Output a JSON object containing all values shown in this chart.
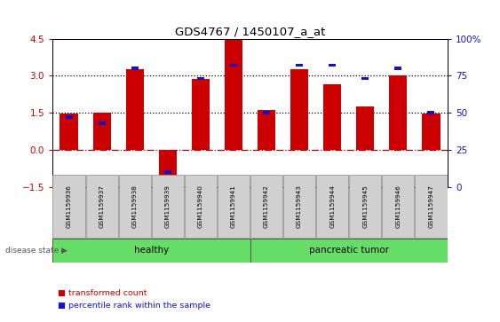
{
  "title": "GDS4767 / 1450107_a_at",
  "samples": [
    "GSM1159936",
    "GSM1159937",
    "GSM1159938",
    "GSM1159939",
    "GSM1159940",
    "GSM1159941",
    "GSM1159942",
    "GSM1159943",
    "GSM1159944",
    "GSM1159945",
    "GSM1159946",
    "GSM1159947"
  ],
  "red_values": [
    1.45,
    1.5,
    3.25,
    -1.4,
    2.88,
    4.45,
    1.62,
    3.28,
    2.65,
    1.75,
    3.0,
    1.45
  ],
  "blue_pct": [
    47,
    43,
    80,
    10,
    73,
    82,
    50,
    82,
    82,
    73,
    80,
    50
  ],
  "ylim_left": [
    -1.5,
    4.5
  ],
  "ylim_right": [
    0,
    100
  ],
  "yticks_left": [
    -1.5,
    0,
    1.5,
    3.0,
    4.5
  ],
  "yticks_right": [
    0,
    25,
    50,
    75,
    100
  ],
  "ytick_labels_right": [
    "0",
    "25",
    "50",
    "75",
    "100%"
  ],
  "red_color": "#cc0000",
  "blue_color": "#1111cc",
  "group1_label": "healthy",
  "group2_label": "pancreatic tumor",
  "group1_range": [
    0,
    6
  ],
  "group2_range": [
    6,
    12
  ],
  "group_color": "#66dd66",
  "sample_bg_color": "#d0d0d0",
  "legend_items": [
    {
      "label": "transformed count",
      "color": "#cc0000"
    },
    {
      "label": "percentile rank within the sample",
      "color": "#1111cc"
    }
  ],
  "disease_label": "disease state"
}
